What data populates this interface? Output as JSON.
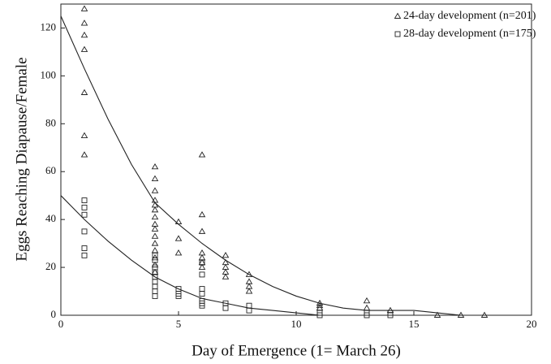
{
  "chart_data": {
    "type": "scatter",
    "x_label": "Day of Emergence (1= March 26)",
    "y_label": "Eggs Reaching Diapause/Female",
    "xlim": [
      0,
      20
    ],
    "xticks": [
      0,
      5,
      10,
      15,
      20
    ],
    "ylim": [
      0,
      130
    ],
    "yticks": [
      0,
      20,
      40,
      60,
      80,
      100,
      120
    ],
    "legend": "upper right",
    "series": [
      {
        "name": "24-day development (n=201)",
        "marker": "triangle",
        "color": "#222",
        "x": [
          1,
          1,
          1,
          1,
          1,
          1,
          1,
          4,
          4,
          4,
          4,
          4,
          4,
          4,
          4,
          4,
          4,
          4,
          4,
          4,
          4,
          4,
          5,
          5,
          5,
          6,
          6,
          6,
          6,
          6,
          6,
          6,
          7,
          7,
          7,
          7,
          7,
          8,
          8,
          8,
          8,
          11,
          11,
          11,
          13,
          13,
          14,
          16,
          17,
          18
        ],
        "values": [
          128,
          122,
          117,
          111,
          93,
          75,
          67,
          62,
          57,
          52,
          48,
          46,
          44,
          41,
          38,
          36,
          33,
          30,
          27,
          24,
          21,
          18,
          39,
          32,
          26,
          67,
          42,
          35,
          26,
          24,
          22,
          20,
          25,
          22,
          20,
          18,
          16,
          17,
          14,
          12,
          10,
          5,
          4,
          3,
          6,
          3,
          2,
          0,
          0,
          0
        ]
      },
      {
        "name": "28-day development (n=175)",
        "marker": "square",
        "color": "#222",
        "x": [
          1,
          1,
          1,
          1,
          1,
          1,
          4,
          4,
          4,
          4,
          4,
          4,
          4,
          4,
          4,
          5,
          5,
          5,
          6,
          6,
          6,
          6,
          6,
          6,
          6,
          7,
          7,
          8,
          8,
          11,
          11,
          13,
          13,
          14,
          14
        ],
        "values": [
          48,
          45,
          42,
          35,
          28,
          25,
          25,
          23,
          20,
          18,
          16,
          14,
          12,
          10,
          8,
          11,
          9,
          8,
          22,
          17,
          11,
          9,
          6,
          5,
          4,
          5,
          3,
          4,
          2,
          1,
          0,
          1,
          0,
          1,
          0
        ]
      }
    ],
    "curves": [
      {
        "color": "#222",
        "x": [
          0,
          1,
          2,
          3,
          4,
          5,
          6,
          7,
          8,
          9,
          10,
          11,
          12,
          13,
          14,
          15,
          16,
          17
        ],
        "values": [
          125,
          103,
          82,
          63,
          47,
          38,
          30,
          23,
          17,
          12,
          8,
          5,
          3,
          2,
          2,
          2,
          1,
          0
        ]
      },
      {
        "color": "#222",
        "x": [
          0,
          1,
          2,
          3,
          4,
          5,
          6,
          7,
          8,
          9,
          10,
          11
        ],
        "values": [
          50,
          40,
          31,
          23,
          16,
          11,
          7,
          5,
          3,
          2,
          1,
          0
        ]
      }
    ]
  }
}
